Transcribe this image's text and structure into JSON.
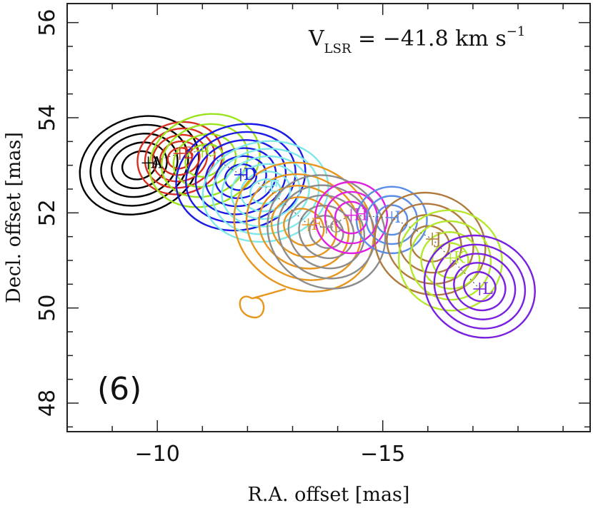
{
  "chart_data": {
    "type": "scatter",
    "title": "",
    "velocity_label": {
      "main": "V",
      "sub": "LSR",
      "text": " = −41.8 km s",
      "sup": "−1"
    },
    "panel_label": "(6)",
    "xlabel": "R.A. offset [mas]",
    "ylabel": "Decl. offset [mas]",
    "xlim": [
      -8,
      -19.6
    ],
    "ylim": [
      47.4,
      56.4
    ],
    "x_major_ticks": [
      -10,
      -15
    ],
    "x_tick_labels": [
      "−10",
      "−15"
    ],
    "y_major_ticks": [
      48,
      50,
      52,
      54,
      56
    ],
    "y_tick_labels": [
      "48",
      "50",
      "52",
      "54",
      "56"
    ],
    "spots": [
      {
        "label": "A",
        "x": -9.8,
        "y": 53.05,
        "color": "#000000"
      },
      {
        "label": "B",
        "x": -10.5,
        "y": 53.25,
        "color": "#d62f1f"
      },
      {
        "label": "C",
        "x": -11.0,
        "y": 53.3,
        "color": "#9be31c"
      },
      {
        "label": "D",
        "x": -11.85,
        "y": 52.8,
        "color": "#1a1ae6"
      },
      {
        "label": "E",
        "x": -12.4,
        "y": 52.55,
        "color": "#7fe8e8"
      },
      {
        "label": "F",
        "x": -13.35,
        "y": 51.75,
        "color": "#e8951c"
      },
      {
        "label": "G",
        "x": -13.75,
        "y": 51.7,
        "color": "#8c8c8c"
      },
      {
        "label": "H",
        "x": -14.3,
        "y": 51.95,
        "color": "#e01fe0"
      },
      {
        "label": "I",
        "x": -15.2,
        "y": 51.9,
        "color": "#5b8de8"
      },
      {
        "label": "J",
        "x": -16.1,
        "y": 51.45,
        "color": "#b07a3c"
      },
      {
        "label": "K",
        "x": -16.5,
        "y": 51.05,
        "color": "#b3e82c"
      },
      {
        "label": "L",
        "x": -17.15,
        "y": 50.4,
        "color": "#7a1fe0"
      }
    ]
  }
}
